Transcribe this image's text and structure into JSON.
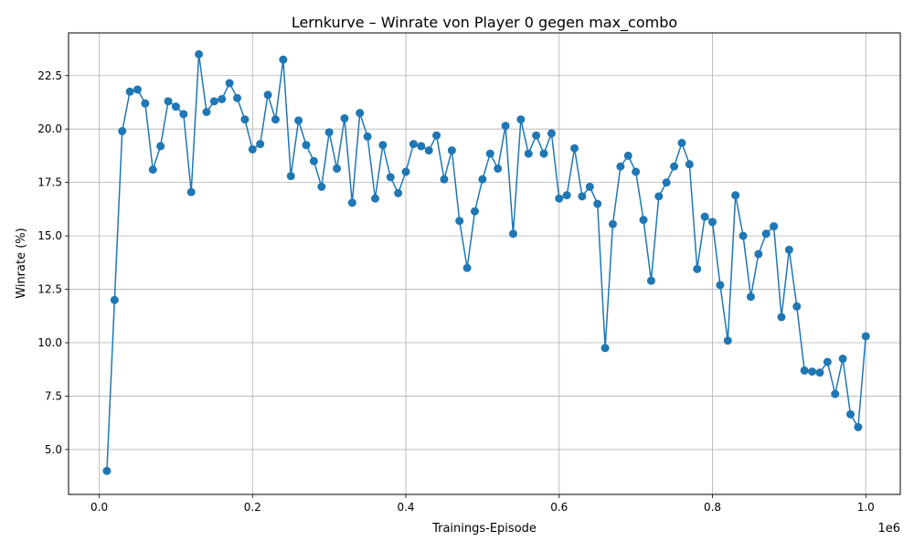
{
  "chart_data": {
    "type": "line",
    "title": "Lernkurve – Winrate von Player 0 gegen max_combo",
    "xlabel": "Trainings-Episode",
    "ylabel": "Winrate (%)",
    "x_offset_label": "1e6",
    "xlim": [
      -40000,
      1045000
    ],
    "ylim": [
      2.9,
      24.5
    ],
    "x_ticks": [
      0,
      200000,
      400000,
      600000,
      800000,
      1000000
    ],
    "x_tick_labels": [
      "0.0",
      "0.2",
      "0.4",
      "0.6",
      "0.8",
      "1.0"
    ],
    "y_ticks": [
      5.0,
      7.5,
      10.0,
      12.5,
      15.0,
      17.5,
      20.0,
      22.5
    ],
    "y_tick_labels": [
      "5.0",
      "7.5",
      "10.0",
      "12.5",
      "15.0",
      "17.5",
      "20.0",
      "22.5"
    ],
    "grid": true,
    "color": "#1f77b4",
    "series": [
      {
        "x": [
          10000,
          20000,
          30000,
          40000,
          50000,
          60000,
          70000,
          80000,
          90000,
          100000,
          110000,
          120000,
          130000,
          140000,
          150000,
          160000,
          170000,
          180000,
          190000,
          200000,
          210000,
          220000,
          230000,
          240000,
          250000,
          260000,
          270000,
          280000,
          290000,
          300000,
          310000,
          320000,
          330000,
          340000,
          350000,
          360000,
          370000,
          380000,
          390000,
          400000,
          410000,
          420000,
          430000,
          440000,
          450000,
          460000,
          470000,
          480000,
          490000,
          500000,
          510000,
          520000,
          530000,
          540000,
          550000,
          560000,
          570000,
          580000,
          590000,
          600000,
          610000,
          620000,
          630000,
          640000,
          650000,
          660000,
          670000,
          680000,
          690000,
          700000,
          710000,
          720000,
          730000,
          740000,
          750000,
          760000,
          770000,
          780000,
          790000,
          800000,
          810000,
          820000,
          830000,
          840000,
          850000,
          860000,
          870000,
          880000,
          890000,
          900000,
          910000,
          920000,
          930000,
          940000,
          950000,
          960000,
          970000,
          980000,
          990000,
          1000000
        ],
        "y": [
          4.0,
          12.0,
          19.9,
          21.75,
          21.85,
          21.2,
          18.1,
          19.2,
          21.3,
          21.05,
          20.7,
          17.05,
          23.5,
          20.8,
          21.3,
          21.4,
          22.15,
          21.45,
          20.45,
          19.05,
          19.3,
          21.6,
          20.45,
          23.25,
          17.8,
          20.4,
          19.25,
          18.5,
          17.3,
          19.85,
          18.15,
          20.5,
          16.55,
          20.75,
          19.65,
          16.75,
          19.25,
          17.75,
          17.0,
          18.0,
          19.3,
          19.2,
          19.0,
          19.7,
          17.65,
          19.0,
          15.7,
          13.5,
          16.15,
          17.65,
          18.85,
          18.15,
          20.15,
          15.1,
          20.45,
          18.85,
          19.7,
          18.85,
          19.8,
          16.75,
          16.9,
          19.1,
          16.85,
          17.3,
          16.5,
          9.75,
          15.55,
          18.25,
          18.75,
          18.0,
          15.75,
          12.9,
          16.85,
          17.5,
          18.25,
          19.35,
          18.35,
          13.45,
          15.9,
          15.65,
          12.7,
          10.1,
          16.9,
          15.0,
          12.15,
          14.15,
          15.1,
          15.45,
          11.2,
          14.35,
          11.7,
          8.7,
          8.65,
          8.6,
          9.1,
          7.6,
          9.25,
          6.65,
          6.05,
          10.3
        ]
      }
    ]
  }
}
